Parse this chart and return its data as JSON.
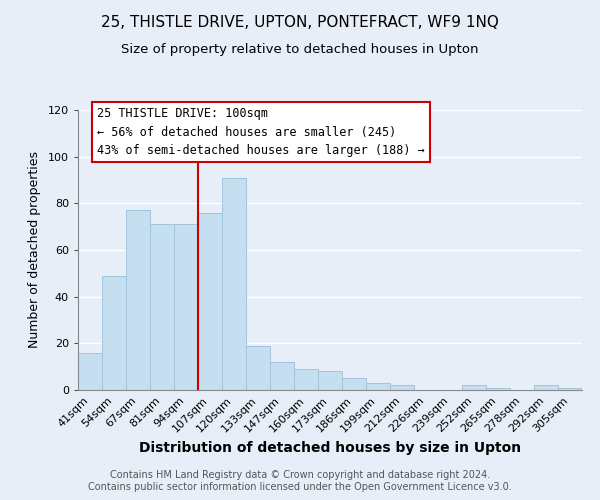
{
  "title": "25, THISTLE DRIVE, UPTON, PONTEFRACT, WF9 1NQ",
  "subtitle": "Size of property relative to detached houses in Upton",
  "xlabel": "Distribution of detached houses by size in Upton",
  "ylabel": "Number of detached properties",
  "categories": [
    "41sqm",
    "54sqm",
    "67sqm",
    "81sqm",
    "94sqm",
    "107sqm",
    "120sqm",
    "133sqm",
    "147sqm",
    "160sqm",
    "173sqm",
    "186sqm",
    "199sqm",
    "212sqm",
    "226sqm",
    "239sqm",
    "252sqm",
    "265sqm",
    "278sqm",
    "292sqm",
    "305sqm"
  ],
  "values": [
    16,
    49,
    77,
    71,
    71,
    76,
    91,
    19,
    12,
    9,
    8,
    5,
    3,
    2,
    0,
    0,
    2,
    1,
    0,
    2,
    1
  ],
  "bar_color": "#c5dff0",
  "bar_edge_color": "#a0c4dc",
  "vline_color": "#cc0000",
  "vline_x_index": 5,
  "ylim": [
    0,
    120
  ],
  "annotation_title": "25 THISTLE DRIVE: 100sqm",
  "annotation_line1": "← 56% of detached houses are smaller (245)",
  "annotation_line2": "43% of semi-detached houses are larger (188) →",
  "annotation_box_color": "#ffffff",
  "annotation_box_edge": "#cc0000",
  "footer1": "Contains HM Land Registry data © Crown copyright and database right 2024.",
  "footer2": "Contains public sector information licensed under the Open Government Licence v3.0.",
  "bg_color": "#e8eef8",
  "grid_color": "#ffffff",
  "title_fontsize": 11,
  "subtitle_fontsize": 9.5,
  "xlabel_fontsize": 10,
  "ylabel_fontsize": 9,
  "tick_fontsize": 8,
  "footer_fontsize": 7,
  "annotation_fontsize": 8.5
}
